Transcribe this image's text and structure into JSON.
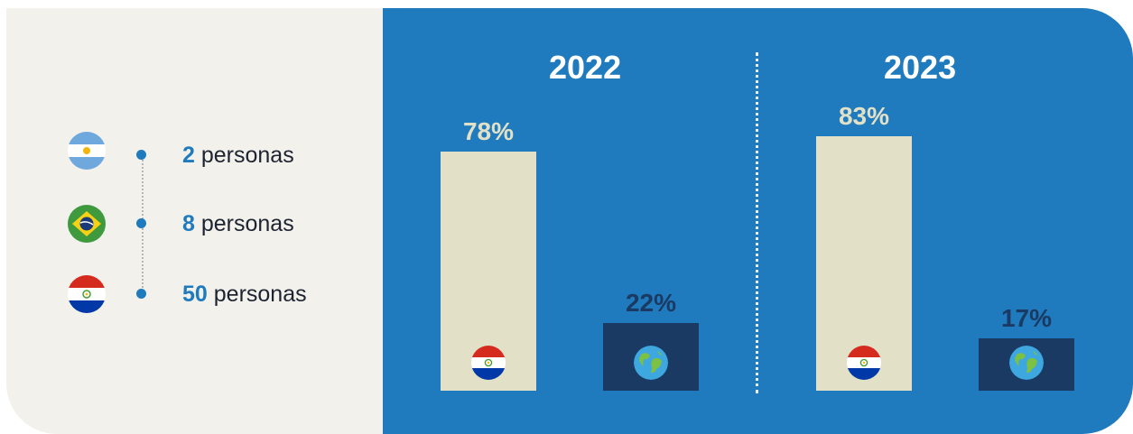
{
  "legend": {
    "items": [
      {
        "flag": "argentina-flag-icon",
        "count": "2",
        "unit": "personas"
      },
      {
        "flag": "brazil-flag-icon",
        "count": "8",
        "unit": "personas"
      },
      {
        "flag": "paraguay-flag-icon",
        "count": "50",
        "unit": "personas"
      }
    ]
  },
  "chart_data": [
    {
      "type": "bar",
      "title": "2022",
      "categories": [
        "paraguay-flag-icon",
        "globe-icon"
      ],
      "values": [
        78,
        22
      ],
      "labels": [
        "78%",
        "22%"
      ],
      "ylim": [
        0,
        100
      ]
    },
    {
      "type": "bar",
      "title": "2023",
      "categories": [
        "paraguay-flag-icon",
        "globe-icon"
      ],
      "values": [
        83,
        17
      ],
      "labels": [
        "83%",
        "17%"
      ],
      "ylim": [
        0,
        100
      ]
    }
  ],
  "colors": {
    "accent": "#1f7bbd",
    "bar_light": "#e2e1c8",
    "bar_dark": "#1b3a63",
    "background_left": "#f2f1ec"
  }
}
